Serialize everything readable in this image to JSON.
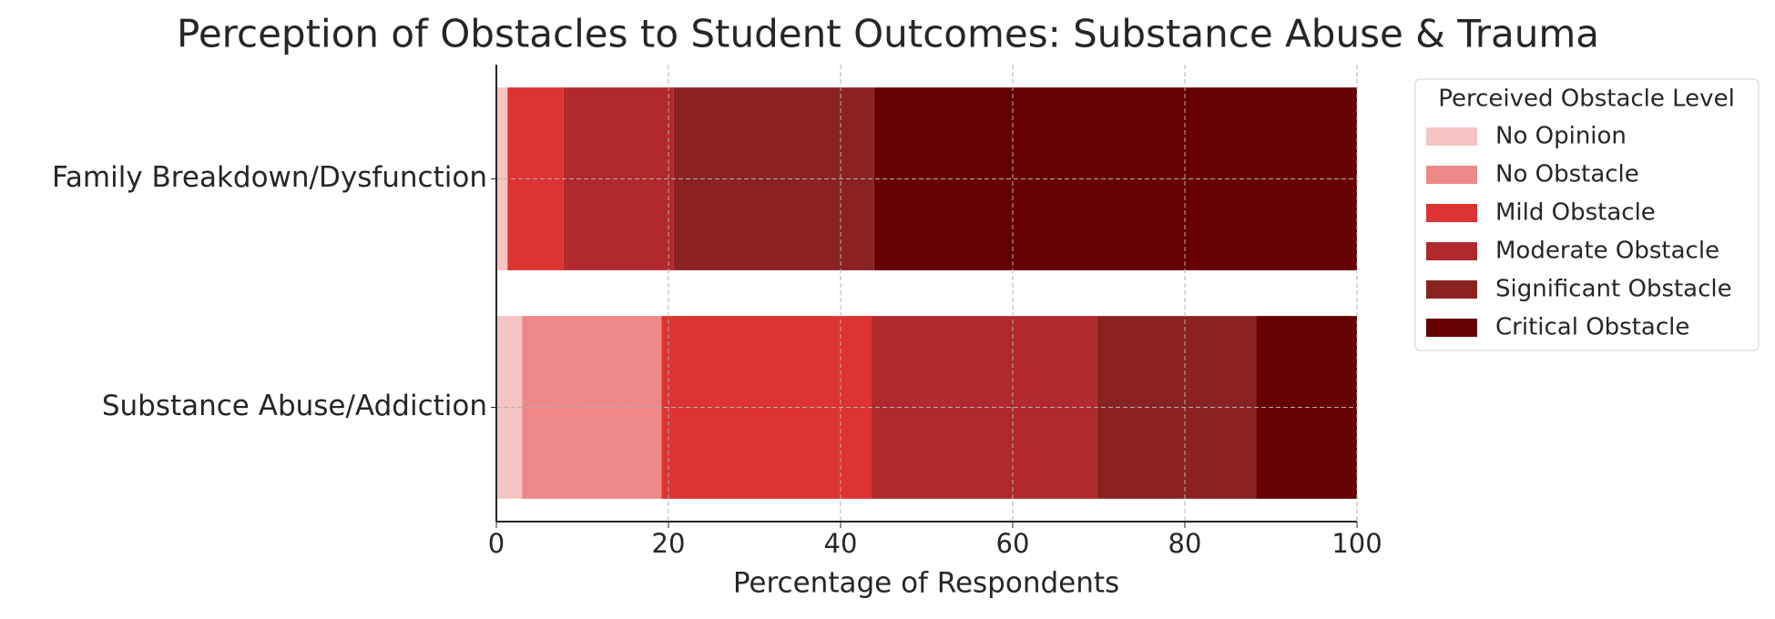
{
  "chart_data": {
    "type": "stacked_barh",
    "title": "Perception of Obstacles to Student Outcomes: Substance Abuse & Trauma",
    "xlabel": "Percentage of Respondents",
    "legend_title": "Perceived Obstacle Level",
    "categories": [
      "Family Breakdown/Dysfunction",
      "Substance Abuse/Addiction"
    ],
    "series": [
      {
        "name": "No Opinion",
        "color": "#f7c4c4",
        "values": [
          1.3,
          3.0
        ]
      },
      {
        "name": "No Obstacle",
        "color": "#ef8888",
        "values": [
          0,
          16.2
        ]
      },
      {
        "name": "Mild Obstacle",
        "color": "#dd3333",
        "values": [
          6.5,
          24.4
        ]
      },
      {
        "name": "Moderate Obstacle",
        "color": "#b2292d",
        "values": [
          12.8,
          26.2
        ]
      },
      {
        "name": "Significant Obstacle",
        "color": "#8b2222",
        "values": [
          23.3,
          18.5
        ]
      },
      {
        "name": "Critical Obstacle",
        "color": "#660000",
        "values": [
          56.1,
          11.7
        ]
      }
    ],
    "xlim": [
      0,
      100
    ],
    "xticks": [
      0,
      20,
      40,
      60,
      80,
      100
    ],
    "grid": true,
    "legend": "outside right"
  }
}
